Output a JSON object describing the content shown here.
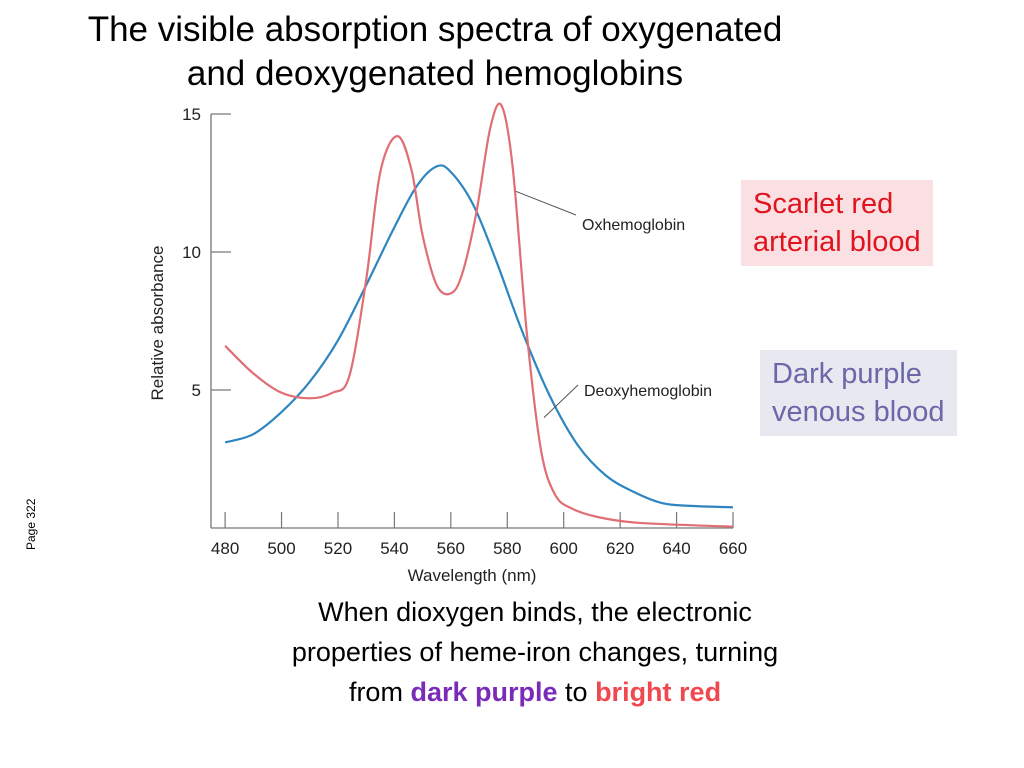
{
  "slide": {
    "title_line1": "The visible absorption spectra of oxygenated",
    "title_line2": "and deoxygenated hemoglobins",
    "page_note": "Page 322"
  },
  "callouts": {
    "red_line1": "Scarlet red",
    "red_line2": "arterial blood",
    "purple_line1": "Dark purple",
    "purple_line2": "venous blood"
  },
  "caption": {
    "line1": "When dioxygen binds, the electronic",
    "line2": "properties of heme-iron changes, turning",
    "from_word": "from",
    "dark_purple": "dark purple",
    "to_word": "to",
    "bright_red": "bright red"
  },
  "chart_data": {
    "type": "line",
    "xlabel": "Wavelength (nm)",
    "ylabel": "Relative absorbance",
    "xlim": [
      475,
      660
    ],
    "ylim": [
      0,
      15
    ],
    "x_ticks": [
      480,
      500,
      520,
      540,
      560,
      580,
      600,
      620,
      640,
      660
    ],
    "y_ticks": [
      5,
      10,
      15
    ],
    "series": [
      {
        "name": "Oxhemoglobin",
        "color": "#e06e74",
        "points": [
          [
            480,
            6.6
          ],
          [
            490,
            5.6
          ],
          [
            500,
            4.9
          ],
          [
            510,
            4.7
          ],
          [
            518,
            4.9
          ],
          [
            524,
            5.5
          ],
          [
            530,
            9.0
          ],
          [
            535,
            12.9
          ],
          [
            541,
            14.2
          ],
          [
            546,
            13.0
          ],
          [
            550,
            10.6
          ],
          [
            555,
            8.8
          ],
          [
            560,
            8.5
          ],
          [
            564,
            9.2
          ],
          [
            569,
            11.4
          ],
          [
            574,
            14.5
          ],
          [
            578,
            15.3
          ],
          [
            582,
            13.0
          ],
          [
            587,
            7.0
          ],
          [
            592,
            2.8
          ],
          [
            597,
            1.2
          ],
          [
            603,
            0.7
          ],
          [
            612,
            0.4
          ],
          [
            625,
            0.2
          ],
          [
            645,
            0.1
          ],
          [
            660,
            0.05
          ]
        ]
      },
      {
        "name": "Deoxyhemoglobin",
        "color": "#2e86c1",
        "points": [
          [
            480,
            3.1
          ],
          [
            490,
            3.4
          ],
          [
            500,
            4.2
          ],
          [
            510,
            5.3
          ],
          [
            520,
            6.8
          ],
          [
            530,
            8.8
          ],
          [
            540,
            10.9
          ],
          [
            548,
            12.4
          ],
          [
            555,
            13.1
          ],
          [
            560,
            12.9
          ],
          [
            568,
            11.7
          ],
          [
            576,
            9.7
          ],
          [
            585,
            7.2
          ],
          [
            595,
            4.8
          ],
          [
            605,
            3.0
          ],
          [
            615,
            1.9
          ],
          [
            625,
            1.3
          ],
          [
            635,
            0.9
          ],
          [
            645,
            0.8
          ],
          [
            660,
            0.75
          ]
        ]
      }
    ]
  }
}
